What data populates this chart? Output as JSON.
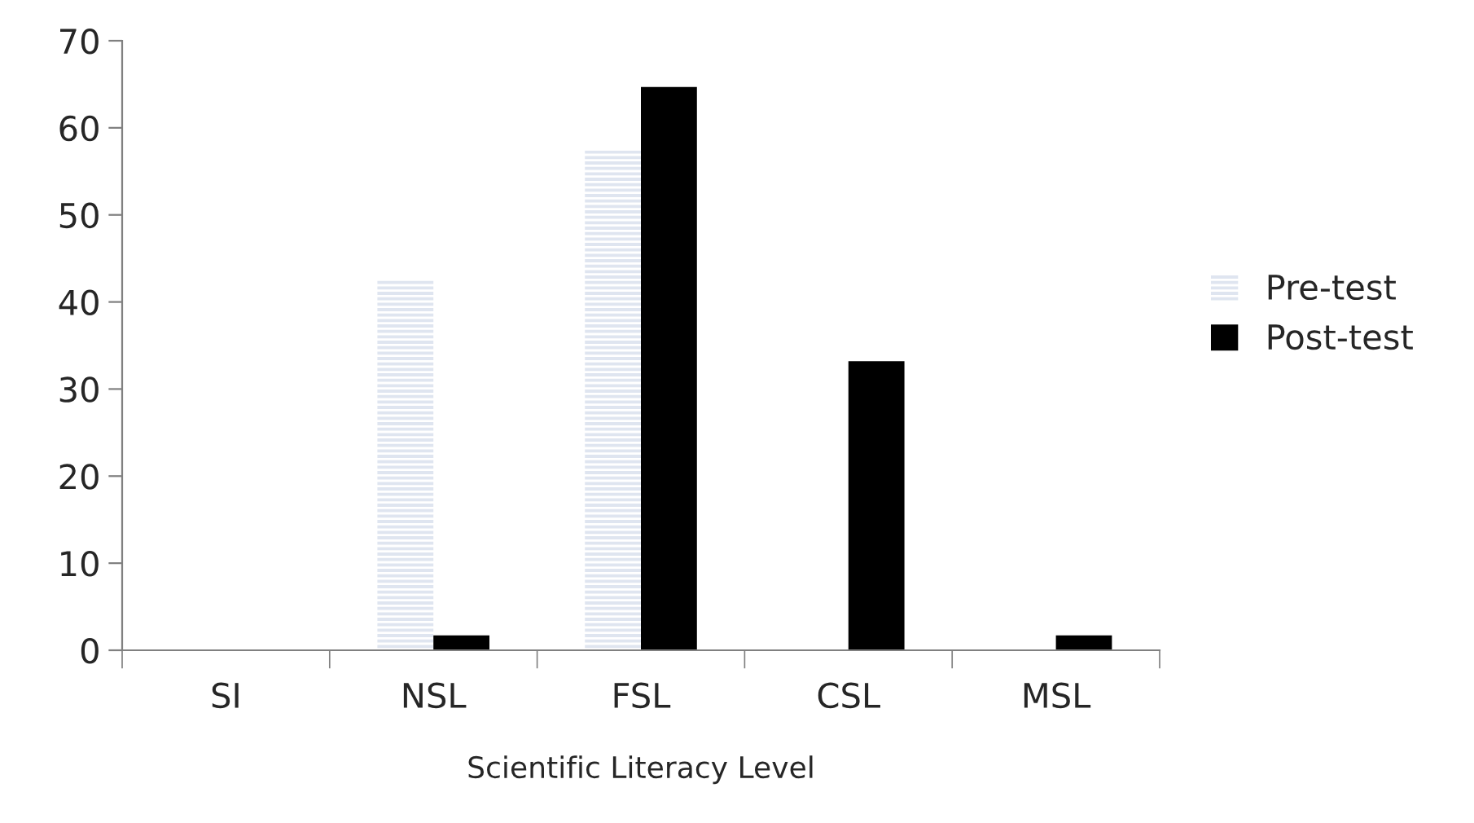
{
  "chart_data": {
    "type": "bar",
    "xlabel": "Scientific Literacy Level",
    "categories": [
      "SI",
      "NSL",
      "FSL",
      "CSL",
      "MSL"
    ],
    "series": [
      {
        "name": "Pre-test",
        "color": "#dfe5f0",
        "values": [
          0,
          42.6,
          57.4,
          0,
          0
        ]
      },
      {
        "name": "Post-test",
        "color": "#000000",
        "values": [
          0,
          1.7,
          64.7,
          33.2,
          1.7
        ]
      }
    ],
    "ylim": [
      0,
      70
    ],
    "yticks": [
      0,
      10,
      20,
      30,
      40,
      50,
      60,
      70
    ],
    "grid": false,
    "legend": "right"
  }
}
